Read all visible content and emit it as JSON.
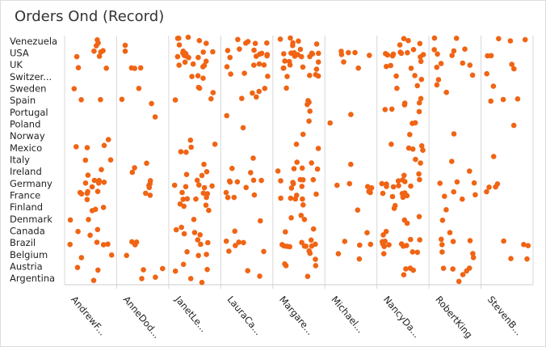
{
  "chart_data": {
    "type": "strip",
    "title": "Orders Ond (Record)",
    "color": "#f06414",
    "categories": [
      "AndrewF...",
      "AnneDod...",
      "JanetLe...",
      "LauraCa...",
      "Margare...",
      "Michael...",
      "NancyDa...",
      "RobertKing",
      "StevenB..."
    ],
    "y_categories": [
      "Venezuela",
      "USA",
      "UK",
      "Switzer...",
      "Sweden",
      "Spain",
      "Portugal",
      "Poland",
      "Norway",
      "Mexico",
      "Italy",
      "Ireland",
      "Germany",
      "France",
      "Finland",
      "Denmark",
      "Canada",
      "Brazil",
      "Belgium",
      "Austria",
      "Argentina"
    ],
    "counts": [
      [
        3,
        5,
        2,
        0,
        1,
        2,
        0,
        0,
        1,
        3,
        2,
        2,
        7,
        6,
        3,
        2,
        3,
        4,
        2,
        2,
        1
      ],
      [
        1,
        1,
        3,
        0,
        1,
        2,
        1,
        0,
        0,
        0,
        1,
        2,
        4,
        2,
        0,
        0,
        0,
        3,
        1,
        2,
        2
      ],
      [
        6,
        10,
        6,
        3,
        3,
        2,
        0,
        0,
        1,
        4,
        1,
        3,
        6,
        7,
        4,
        1,
        5,
        3,
        3,
        3,
        2
      ],
      [
        5,
        9,
        4,
        3,
        3,
        2,
        1,
        1,
        0,
        0,
        1,
        2,
        6,
        4,
        0,
        1,
        1,
        4,
        2,
        1,
        1
      ],
      [
        6,
        12,
        8,
        4,
        1,
        3,
        1,
        1,
        1,
        2,
        2,
        4,
        8,
        6,
        1,
        3,
        2,
        10,
        3,
        3,
        1
      ],
      [
        0,
        5,
        2,
        0,
        0,
        0,
        1,
        1,
        0,
        0,
        1,
        0,
        4,
        2,
        1,
        0,
        1,
        3,
        2,
        0,
        0
      ],
      [
        4,
        10,
        4,
        3,
        2,
        4,
        3,
        2,
        1,
        5,
        2,
        2,
        10,
        6,
        2,
        3,
        2,
        10,
        3,
        3,
        1
      ],
      [
        2,
        5,
        4,
        2,
        2,
        0,
        0,
        0,
        1,
        0,
        1,
        1,
        3,
        4,
        1,
        1,
        1,
        4,
        3,
        4,
        2
      ],
      [
        3,
        2,
        2,
        1,
        1,
        3,
        0,
        1,
        0,
        0,
        1,
        0,
        3,
        1,
        0,
        0,
        0,
        3,
        2,
        0,
        0
      ]
    ]
  }
}
